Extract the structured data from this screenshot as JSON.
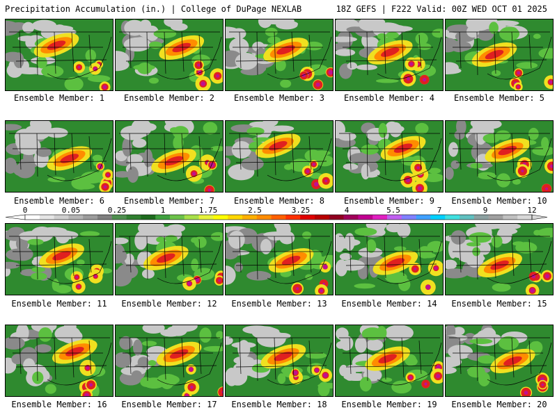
{
  "header": {
    "title": "Precipitation Accumulation (in.) | College of DuPage NEXLAB",
    "run_info": "18Z GEFS | F222 Valid: 00Z WED OCT 01 2025"
  },
  "panels": [
    {
      "label": "Ensemble Member: 1"
    },
    {
      "label": "Ensemble Member: 2"
    },
    {
      "label": "Ensemble Member: 3"
    },
    {
      "label": "Ensemble Member: 4"
    },
    {
      "label": "Ensemble Member: 5"
    },
    {
      "label": "Ensemble Member: 6"
    },
    {
      "label": "Ensemble Member: 7"
    },
    {
      "label": "Ensemble Member: 8"
    },
    {
      "label": "Ensemble Member: 9"
    },
    {
      "label": "Ensemble Member: 10"
    },
    {
      "label": "Ensemble Member: 11"
    },
    {
      "label": "Ensemble Member: 12"
    },
    {
      "label": "Ensemble Member: 13"
    },
    {
      "label": "Ensemble Member: 14"
    },
    {
      "label": "Ensemble Member: 15"
    },
    {
      "label": "Ensemble Member: 16"
    },
    {
      "label": "Ensemble Member: 17"
    },
    {
      "label": "Ensemble Member: 18"
    },
    {
      "label": "Ensemble Member: 19"
    },
    {
      "label": "Ensemble Member: 20"
    }
  ],
  "color_scale": {
    "labels": [
      "0",
      "0.05",
      "0.25",
      "1",
      "1.75",
      "2.5",
      "3.25",
      "4",
      "5.5",
      "7",
      "9",
      "12"
    ],
    "colors": [
      "#ffffff",
      "#e6e6e6",
      "#cfcfcf",
      "#b4b4b4",
      "#9c9c9c",
      "#7f7f7f",
      "#4f8f4f",
      "#2f7f2f",
      "#1e6b1e",
      "#3fa03f",
      "#6cc24a",
      "#a8e04a",
      "#e6f23c",
      "#ffff00",
      "#ffd700",
      "#ffb000",
      "#ff8c00",
      "#ff6000",
      "#ff3000",
      "#e00000",
      "#b80000",
      "#900020",
      "#a0005a",
      "#c00090",
      "#e020c0",
      "#c060f0",
      "#8080ff",
      "#40a0ff",
      "#00d0ff",
      "#40e0e0",
      "#60c0c0",
      "#8ca0a0",
      "#a0a0a0",
      "#c0c0c0",
      "#d8d8d8"
    ]
  },
  "map_colors": {
    "background": "#ffffff",
    "land_light": "#c8c8c8",
    "land_dark": "#8a8a8a",
    "green": "#2f8a2f",
    "bright_green": "#5cc040",
    "yellow": "#f0e020",
    "orange": "#ff8c00",
    "red": "#e02020",
    "magenta": "#c01090",
    "blue": "#6fa0ff"
  }
}
